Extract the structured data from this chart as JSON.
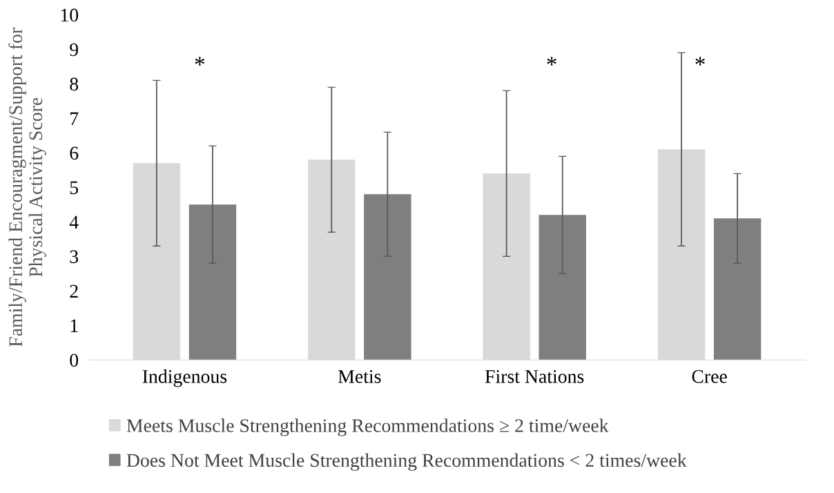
{
  "chart_data": {
    "type": "bar",
    "ylabel": "Family/Friend Encouragment/Support for\nPhysical Activity Score",
    "categories": [
      "Indigenous",
      "Metis",
      "First Nations",
      "Cree"
    ],
    "series": [
      {
        "name": "Meets Muscle Strengthening Recommendations ≥ 2 time/week",
        "color": "#d9d9d9",
        "values": [
          5.7,
          5.8,
          5.4,
          6.1
        ],
        "errors": [
          2.4,
          2.1,
          2.4,
          2.8
        ]
      },
      {
        "name": "Does Not Meet Muscle Strengthening Recommendations < 2 times/week",
        "color": "#7f7f7f",
        "values": [
          4.5,
          4.8,
          4.2,
          4.1
        ],
        "errors": [
          1.7,
          1.8,
          1.7,
          1.3
        ]
      }
    ],
    "ylim": [
      0,
      10
    ],
    "yticks": [
      0,
      1,
      2,
      3,
      4,
      5,
      6,
      7,
      8,
      9,
      10
    ],
    "grid": false,
    "legend": "bottom",
    "annotations": [
      "*",
      "*",
      "*"
    ]
  }
}
